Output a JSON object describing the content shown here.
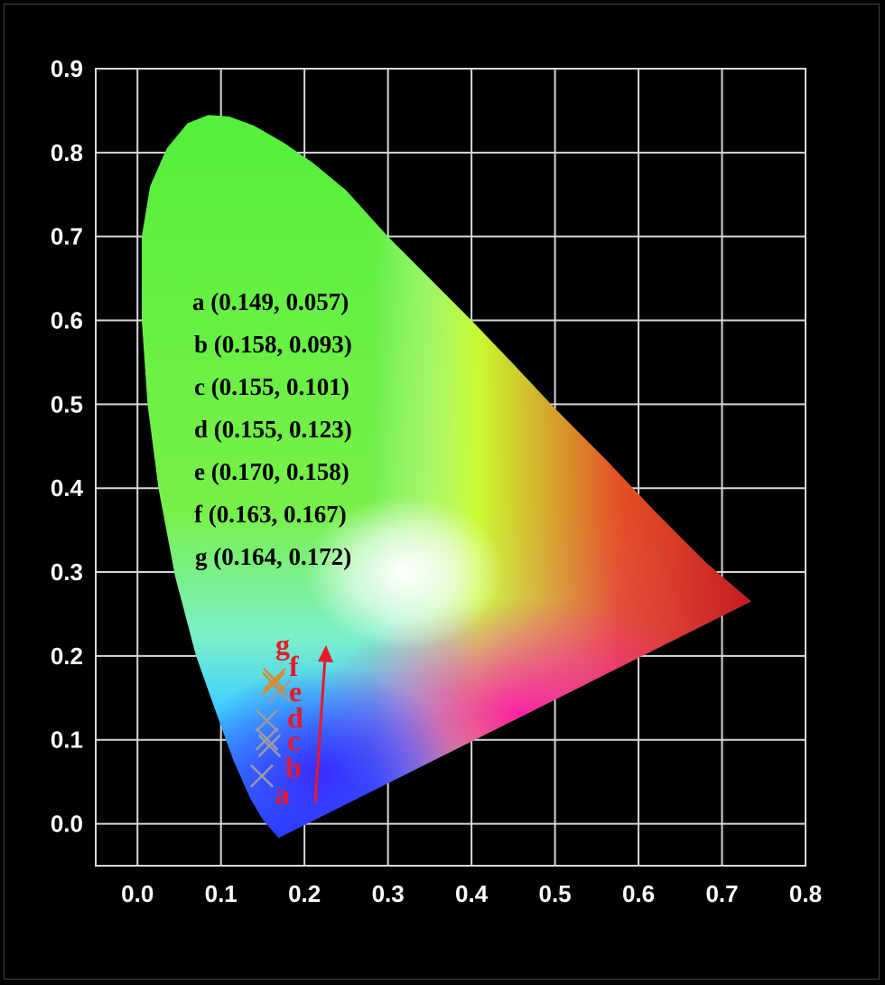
{
  "chart_data": {
    "type": "scatter",
    "title": "",
    "xlabel": "",
    "ylabel": "",
    "xlim": [
      -0.05,
      0.8
    ],
    "ylim": [
      -0.05,
      0.9
    ],
    "grid": true,
    "x_ticks": [
      "0.0",
      "0.1",
      "0.2",
      "0.3",
      "0.4",
      "0.5",
      "0.6",
      "0.7",
      "0.8"
    ],
    "y_ticks": [
      "0.0",
      "0.1",
      "0.2",
      "0.3",
      "0.4",
      "0.5",
      "0.6",
      "0.7",
      "0.8",
      "0.9"
    ],
    "points": [
      {
        "label": "a",
        "x": 0.149,
        "y": 0.057,
        "text": "a (0.149, 0.057)"
      },
      {
        "label": "b",
        "x": 0.158,
        "y": 0.093,
        "text": "b (0.158, 0.093)"
      },
      {
        "label": "c",
        "x": 0.155,
        "y": 0.101,
        "text": "c (0.155, 0.101)"
      },
      {
        "label": "d",
        "x": 0.155,
        "y": 0.123,
        "text": "d (0.155, 0.123)"
      },
      {
        "label": "e",
        "x": 0.17,
        "y": 0.158,
        "text": "e (0.170, 0.158)"
      },
      {
        "label": "f",
        "x": 0.163,
        "y": 0.167,
        "text": "f (0.163, 0.167)"
      },
      {
        "label": "g",
        "x": 0.164,
        "y": 0.172,
        "text": "g (0.164, 0.172)"
      }
    ],
    "colors": {
      "background": "#000000",
      "grid": "#d8d8d8",
      "tick_text": "#ffffff",
      "point_label": "#e8192c",
      "arrow": "#e8192c",
      "marker_gray": "#9a9aa8",
      "marker_orange": "#d98a2a"
    }
  }
}
